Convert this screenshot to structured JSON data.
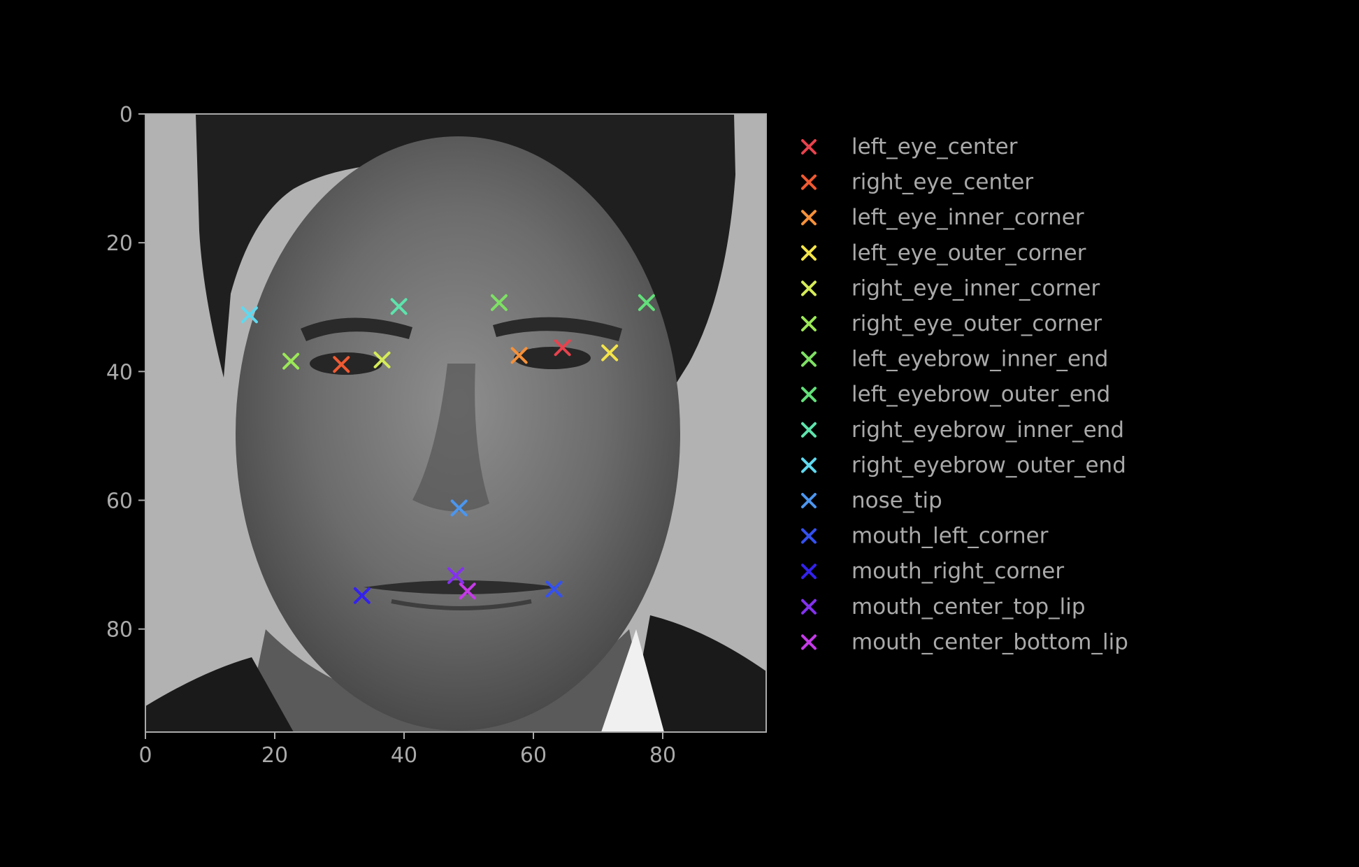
{
  "chart_data": {
    "type": "scatter",
    "title": "",
    "xlabel": "",
    "ylabel": "",
    "xlim": [
      0,
      96
    ],
    "ylim": [
      96,
      0
    ],
    "y_inverted": true,
    "background_image": "grayscale-face-photo",
    "marker": "x",
    "x_ticks": [
      0,
      20,
      40,
      60,
      80
    ],
    "y_ticks": [
      0,
      20,
      40,
      60,
      80
    ],
    "x_tick_labels": [
      "0",
      "20",
      "40",
      "60",
      "80"
    ],
    "y_tick_labels": [
      "0",
      "20",
      "40",
      "60",
      "80"
    ],
    "grid": false,
    "legend_position": "right",
    "series": [
      {
        "name": "left_eye_center",
        "color": "#e8424d",
        "x": 64.5,
        "y": 36.3
      },
      {
        "name": "right_eye_center",
        "color": "#f05a32",
        "x": 30.3,
        "y": 38.9
      },
      {
        "name": "left_eye_inner_corner",
        "color": "#f6913a",
        "x": 57.8,
        "y": 37.5
      },
      {
        "name": "left_eye_outer_corner",
        "color": "#f4e44a",
        "x": 71.8,
        "y": 37.1
      },
      {
        "name": "right_eye_inner_corner",
        "color": "#d6ec57",
        "x": 36.6,
        "y": 38.2
      },
      {
        "name": "right_eye_outer_corner",
        "color": "#9be857",
        "x": 22.5,
        "y": 38.4
      },
      {
        "name": "left_eyebrow_inner_end",
        "color": "#7ee064",
        "x": 54.7,
        "y": 29.3
      },
      {
        "name": "left_eyebrow_outer_end",
        "color": "#62e07a",
        "x": 77.5,
        "y": 29.3
      },
      {
        "name": "right_eyebrow_inner_end",
        "color": "#5ee3ac",
        "x": 39.2,
        "y": 29.9
      },
      {
        "name": "right_eyebrow_outer_end",
        "color": "#5fd9ef",
        "x": 16.1,
        "y": 31.2
      },
      {
        "name": "nose_tip",
        "color": "#4b96ef",
        "x": 48.5,
        "y": 61.2
      },
      {
        "name": "mouth_left_corner",
        "color": "#3451f0",
        "x": 63.2,
        "y": 73.8
      },
      {
        "name": "mouth_right_corner",
        "color": "#3322ee",
        "x": 33.5,
        "y": 74.8
      },
      {
        "name": "mouth_center_top_lip",
        "color": "#8431ee",
        "x": 48.0,
        "y": 71.7
      },
      {
        "name": "mouth_center_bottom_lip",
        "color": "#c53ae8",
        "x": 49.8,
        "y": 74.1
      }
    ]
  }
}
